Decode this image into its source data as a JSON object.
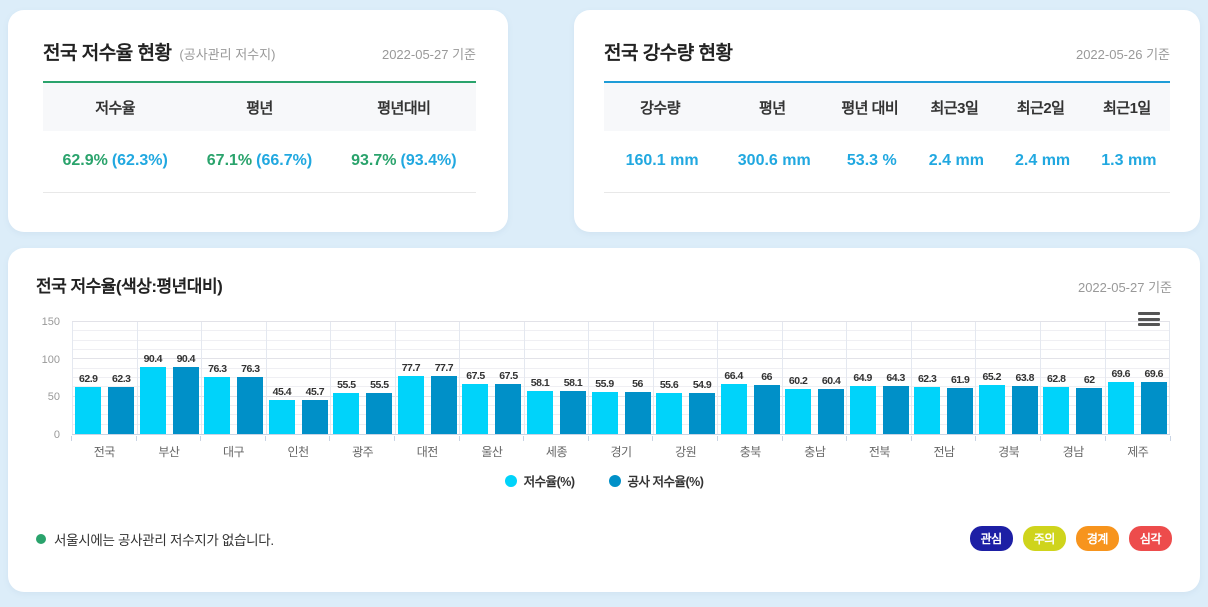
{
  "reservoir_card": {
    "title": "전국 저수율 현황",
    "subtitle": "(공사관리 저수지)",
    "date": "2022-05-27 기준",
    "columns": [
      "저수율",
      "평년",
      "평년대비"
    ],
    "values": [
      {
        "main": "62.9%",
        "sub": "(62.3%)"
      },
      {
        "main": "67.1%",
        "sub": "(66.7%)"
      },
      {
        "main": "93.7%",
        "sub": "(93.4%)"
      }
    ]
  },
  "rainfall_card": {
    "title": "전국 강수량 현황",
    "date": "2022-05-26 기준",
    "columns": [
      "강수량",
      "평년",
      "평년 대비",
      "최근3일",
      "최근2일",
      "최근1일"
    ],
    "values": [
      "160.1 mm",
      "300.6 mm",
      "53.3 %",
      "2.4 mm",
      "2.4 mm",
      "1.3 mm"
    ]
  },
  "chart_card": {
    "title": "전국 저수율(색상:평년대비)",
    "date": "2022-05-27 기준",
    "note": "서울시에는 공사관리 저수지가 없습니다.",
    "badges": [
      {
        "label": "관심",
        "color": "#1d1fa5"
      },
      {
        "label": "주의",
        "color": "#cfd41c"
      },
      {
        "label": "경계",
        "color": "#f7941d"
      },
      {
        "label": "심각",
        "color": "#ed4c4c"
      }
    ]
  },
  "chart_data": {
    "type": "bar",
    "categories": [
      "전국",
      "부산",
      "대구",
      "인천",
      "광주",
      "대전",
      "울산",
      "세종",
      "경기",
      "강원",
      "충북",
      "충남",
      "전북",
      "전남",
      "경북",
      "경남",
      "제주"
    ],
    "series": [
      {
        "name": "저수율(%)",
        "color": "#00d3fa",
        "values": [
          62.9,
          90.4,
          76.3,
          45.4,
          55.5,
          77.7,
          67.5,
          58.1,
          55.9,
          55.6,
          66.4,
          60.2,
          64.9,
          62.3,
          65.2,
          62.8,
          69.6
        ]
      },
      {
        "name": "공사 저수율(%)",
        "color": "#0090c8",
        "values": [
          62.3,
          90.4,
          76.3,
          45.7,
          55.5,
          77.7,
          67.5,
          58.1,
          56,
          54.9,
          66,
          60.4,
          64.3,
          61.9,
          63.8,
          62,
          69.6
        ]
      }
    ],
    "title": "전국 저수율(색상:평년대비)",
    "xlabel": "",
    "ylabel": "",
    "ylim": [
      0,
      150
    ],
    "yticks": [
      0,
      50,
      100,
      150
    ],
    "minor_tick_step": 12.5,
    "grid": true,
    "legend_position": "bottom"
  }
}
